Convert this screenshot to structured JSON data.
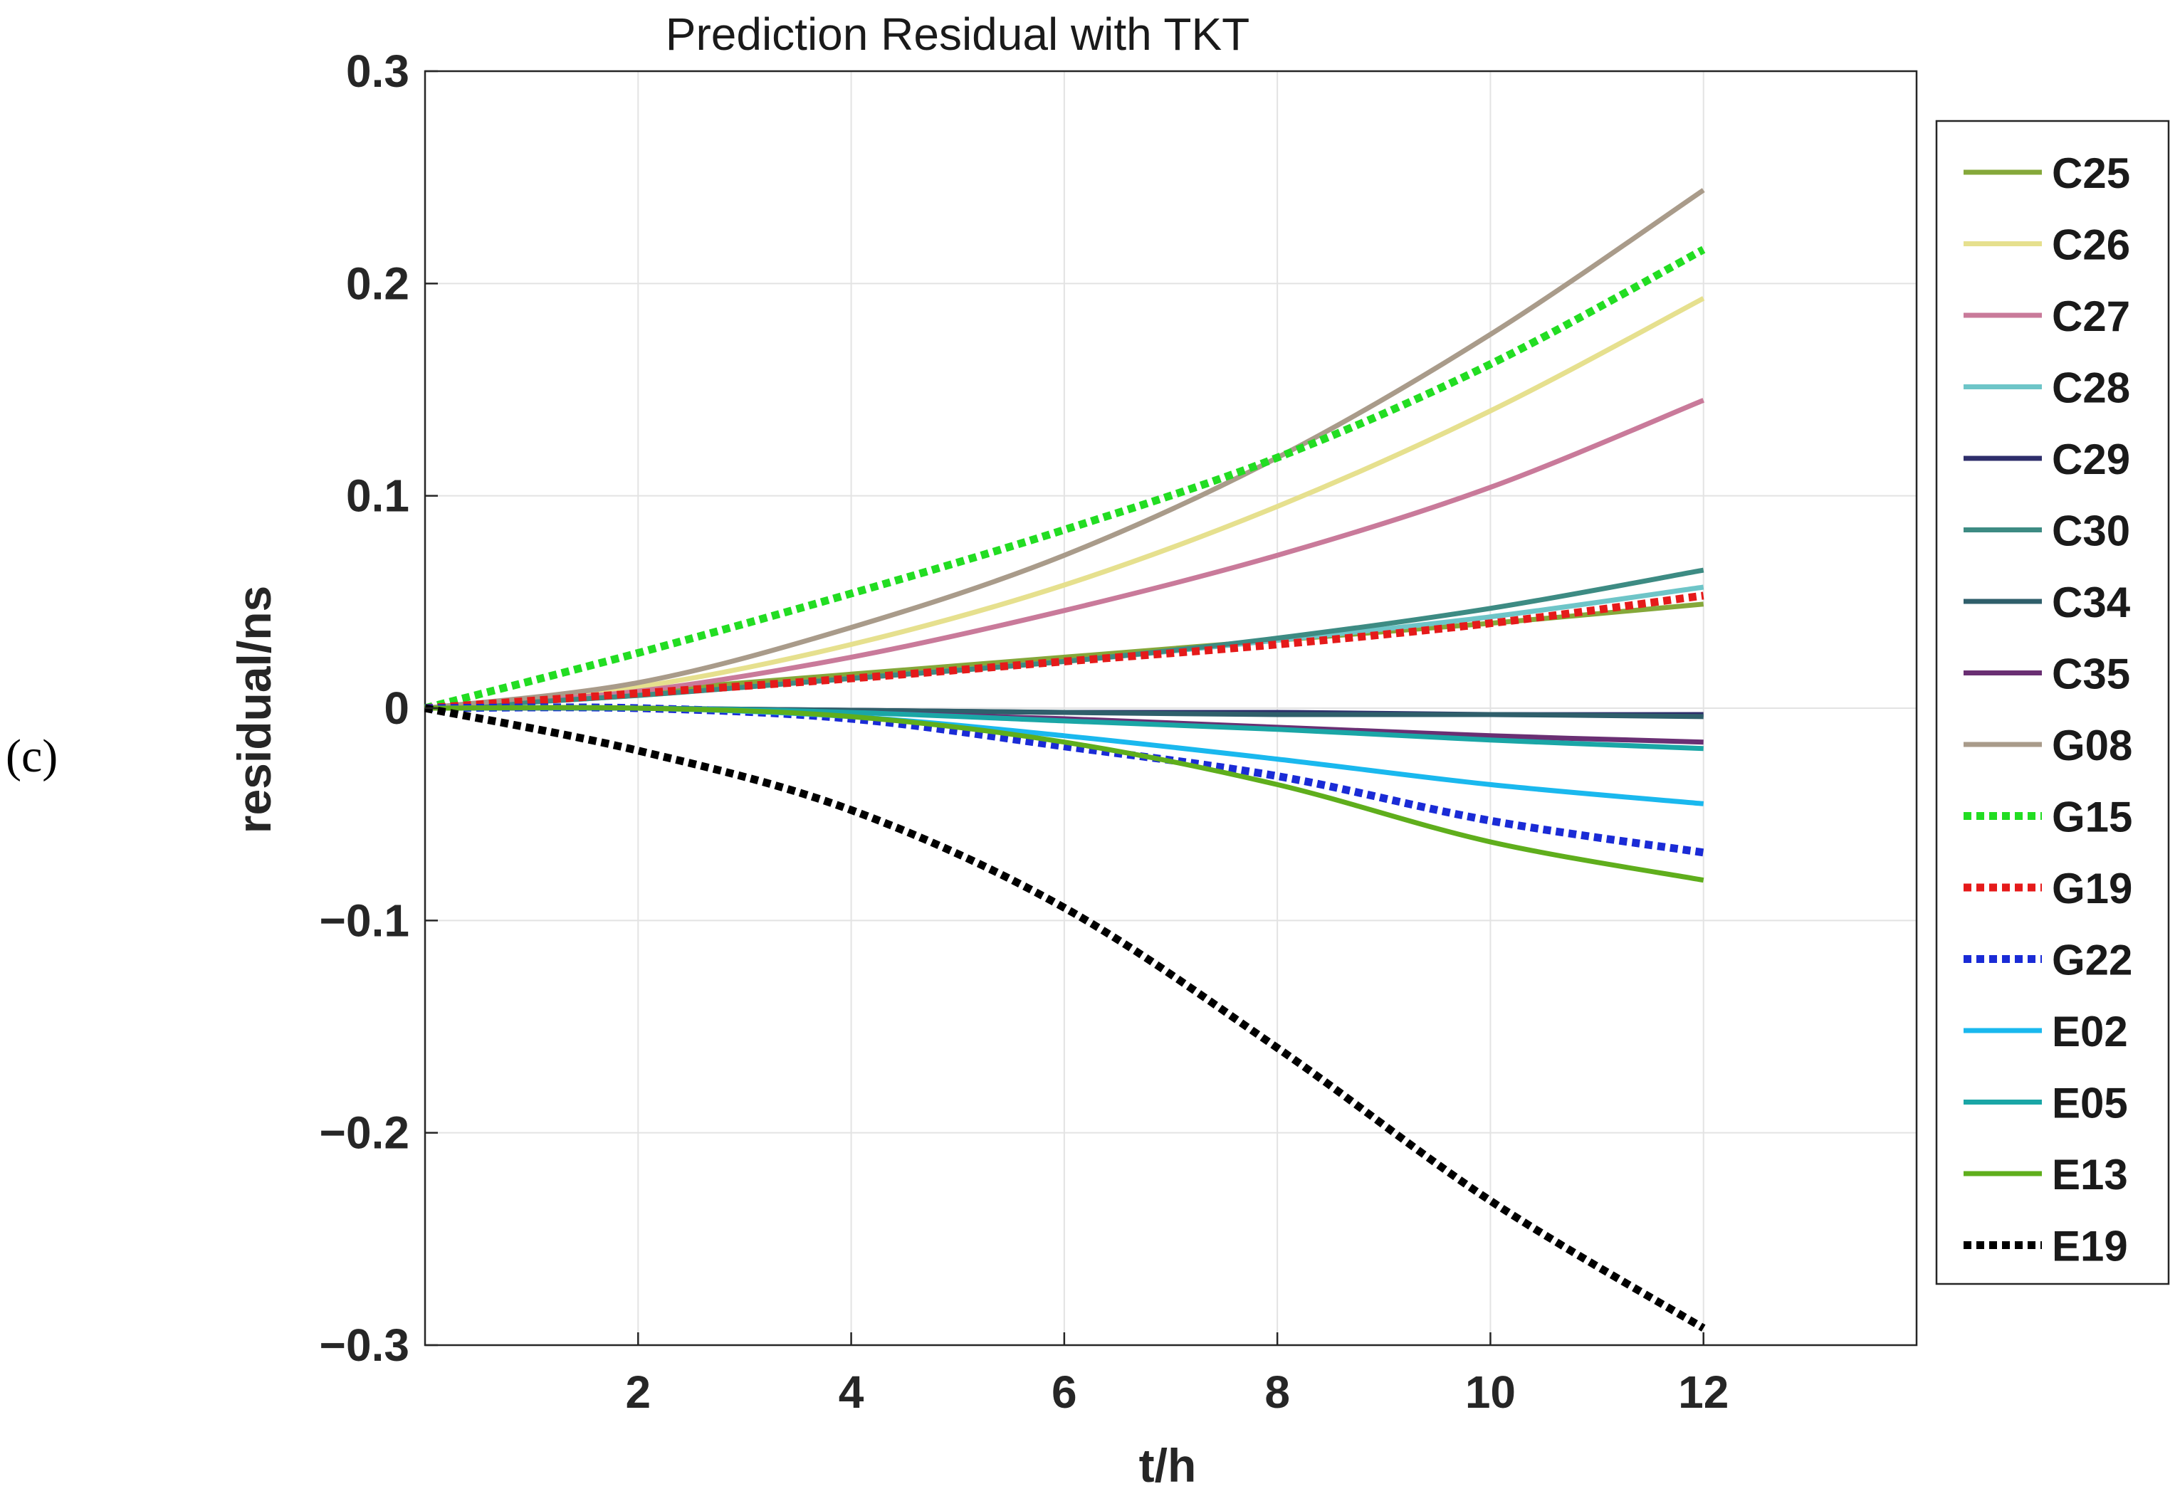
{
  "panel_label": "(c)",
  "chart_data": {
    "type": "line",
    "title": "Prediction Residual with TKT",
    "xlabel": "t/h",
    "ylabel": "residual/ns",
    "xlim": [
      0,
      14
    ],
    "ylim": [
      -0.3,
      0.3
    ],
    "xticks": [
      2,
      4,
      6,
      8,
      10,
      12
    ],
    "xtick_labels": [
      "2",
      "4",
      "6",
      "8",
      "10",
      "12"
    ],
    "yticks": [
      0.3,
      0.2,
      0.1,
      0,
      -0.1,
      -0.2,
      -0.3
    ],
    "ytick_labels": [
      "0.3",
      "0.2",
      "0.1",
      "0",
      "−0.1",
      "−0.2",
      "−0.3"
    ],
    "grid": true,
    "legend_position": "right, outside",
    "x": [
      0,
      2,
      4,
      6,
      8,
      10,
      12
    ],
    "series": [
      {
        "name": "C25",
        "color": "#85a83a",
        "style": "solid",
        "values": [
          0,
          0.008,
          0.016,
          0.024,
          0.032,
          0.04,
          0.049
        ]
      },
      {
        "name": "C26",
        "color": "#e6e08e",
        "style": "solid",
        "values": [
          0,
          0.01,
          0.03,
          0.058,
          0.095,
          0.14,
          0.193
        ]
      },
      {
        "name": "C27",
        "color": "#c97a9a",
        "style": "solid",
        "values": [
          0,
          0.008,
          0.024,
          0.046,
          0.072,
          0.104,
          0.145
        ]
      },
      {
        "name": "C28",
        "color": "#6ec5c8",
        "style": "solid",
        "values": [
          0,
          0.006,
          0.014,
          0.022,
          0.032,
          0.043,
          0.057
        ]
      },
      {
        "name": "C29",
        "color": "#2e2e6b",
        "style": "solid",
        "values": [
          0,
          0.0,
          -0.001,
          -0.002,
          -0.002,
          -0.003,
          -0.003
        ]
      },
      {
        "name": "C30",
        "color": "#3d8b83",
        "style": "solid",
        "values": [
          0,
          0.006,
          0.014,
          0.022,
          0.033,
          0.047,
          0.065
        ]
      },
      {
        "name": "C34",
        "color": "#2f5f6b",
        "style": "solid",
        "values": [
          0,
          0.0,
          -0.001,
          -0.002,
          -0.003,
          -0.003,
          -0.004
        ]
      },
      {
        "name": "C35",
        "color": "#6a2f73",
        "style": "solid",
        "values": [
          0,
          0.0,
          -0.002,
          -0.005,
          -0.009,
          -0.013,
          -0.016
        ]
      },
      {
        "name": "G08",
        "color": "#a99b8a",
        "style": "solid",
        "values": [
          0,
          0.012,
          0.038,
          0.072,
          0.118,
          0.176,
          0.244
        ]
      },
      {
        "name": "G15",
        "color": "#22dd22",
        "style": "dotted",
        "values": [
          0,
          0.026,
          0.054,
          0.084,
          0.118,
          0.162,
          0.216
        ]
      },
      {
        "name": "G19",
        "color": "#e51a1a",
        "style": "dotted",
        "values": [
          0,
          0.007,
          0.014,
          0.022,
          0.03,
          0.04,
          0.053
        ]
      },
      {
        "name": "G22",
        "color": "#1a2bd6",
        "style": "dotted",
        "values": [
          0,
          0.0,
          -0.005,
          -0.018,
          -0.032,
          -0.053,
          -0.068
        ]
      },
      {
        "name": "E02",
        "color": "#1ab8ee",
        "style": "solid",
        "values": [
          0,
          0.0,
          -0.004,
          -0.013,
          -0.024,
          -0.036,
          -0.045
        ]
      },
      {
        "name": "E05",
        "color": "#1aa6a6",
        "style": "solid",
        "values": [
          0,
          0.0,
          -0.002,
          -0.006,
          -0.01,
          -0.015,
          -0.019
        ]
      },
      {
        "name": "E13",
        "color": "#5fae1c",
        "style": "solid",
        "values": [
          0,
          0.0,
          -0.004,
          -0.016,
          -0.036,
          -0.063,
          -0.081
        ]
      },
      {
        "name": "E19",
        "color": "#000000",
        "style": "dotted",
        "values": [
          0,
          -0.02,
          -0.048,
          -0.094,
          -0.16,
          -0.232,
          -0.292
        ]
      }
    ]
  }
}
